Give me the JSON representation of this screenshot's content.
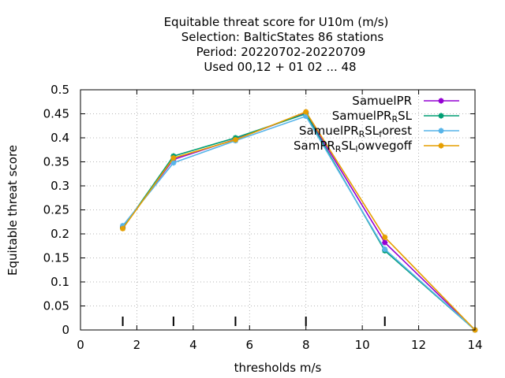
{
  "chart_data": {
    "type": "line",
    "title_lines": [
      "Equitable threat score  for U10m (m/s)",
      "Selection: BalticStates     86 stations",
      "Period: 20220702-20220709",
      "Used  00,12  + 01 02 ... 48"
    ],
    "xlabel": "thresholds m/s",
    "ylabel": "Equitable threat score",
    "xlim": [
      0,
      14
    ],
    "ylim": [
      0,
      0.5
    ],
    "xticks": [
      0,
      2,
      4,
      6,
      8,
      10,
      12,
      14
    ],
    "yticks": [
      0,
      0.05,
      0.1,
      0.15,
      0.2,
      0.25,
      0.3,
      0.35,
      0.4,
      0.45,
      0.5
    ],
    "grid": true,
    "legend_position": "top-right",
    "threshold_markers": [
      1.5,
      3.3,
      5.5,
      8.0,
      10.8
    ],
    "series": [
      {
        "label_parts": [
          [
            "SamuelPR",
            ""
          ]
        ],
        "color": "#9400d3",
        "marker": "plus-star",
        "points": [
          [
            1.5,
            0.214
          ],
          [
            3.3,
            0.355
          ],
          [
            5.5,
            0.397
          ],
          [
            8.0,
            0.452
          ],
          [
            10.8,
            0.182
          ],
          [
            14.0,
            0.0
          ]
        ]
      },
      {
        "label_parts": [
          [
            "SamuelPR",
            ""
          ],
          [
            "R",
            "sub"
          ],
          [
            "SL",
            ""
          ]
        ],
        "color": "#009e73",
        "marker": "plus-star",
        "points": [
          [
            1.5,
            0.212
          ],
          [
            3.3,
            0.362
          ],
          [
            5.5,
            0.4
          ],
          [
            8.0,
            0.45
          ],
          [
            10.8,
            0.165
          ],
          [
            14.0,
            0.0
          ]
        ]
      },
      {
        "label_parts": [
          [
            "SamuelPR",
            ""
          ],
          [
            "R",
            "sub"
          ],
          [
            "SL",
            ""
          ],
          [
            "f",
            "sub"
          ],
          [
            "orest",
            ""
          ]
        ],
        "color": "#56b4e9",
        "marker": "plus-star",
        "points": [
          [
            1.5,
            0.217
          ],
          [
            3.3,
            0.348
          ],
          [
            5.5,
            0.394
          ],
          [
            8.0,
            0.445
          ],
          [
            10.8,
            0.168
          ],
          [
            14.0,
            0.0
          ]
        ]
      },
      {
        "label_parts": [
          [
            "SamPR",
            ""
          ],
          [
            "R",
            "sub"
          ],
          [
            "SL",
            ""
          ],
          [
            "l",
            "sub"
          ],
          [
            "owvegoff",
            ""
          ]
        ],
        "color": "#e69f00",
        "marker": "plus-star",
        "points": [
          [
            1.5,
            0.211
          ],
          [
            3.3,
            0.358
          ],
          [
            5.5,
            0.396
          ],
          [
            8.0,
            0.454
          ],
          [
            10.8,
            0.193
          ],
          [
            14.0,
            0.0
          ]
        ]
      }
    ]
  }
}
